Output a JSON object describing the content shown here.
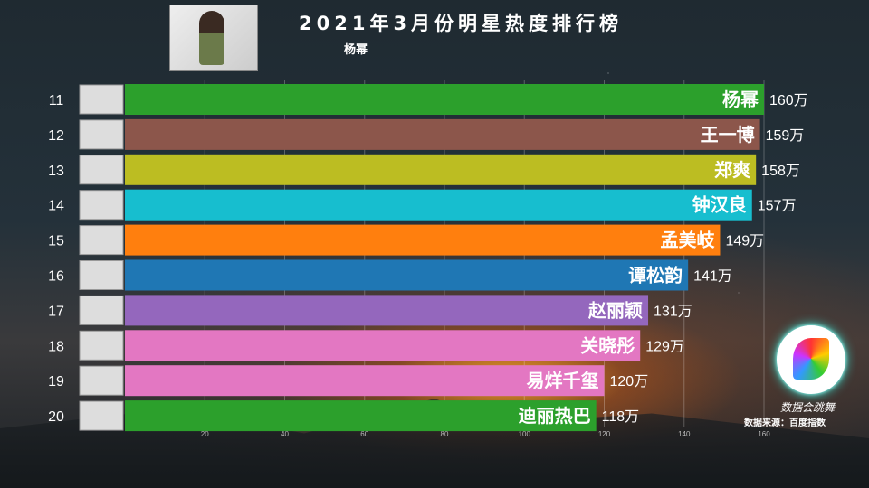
{
  "chart_data": {
    "type": "bar",
    "orientation": "horizontal",
    "title": "2021年3月份明星热度排行榜",
    "subtitle": "杨幂",
    "ranks": [
      11,
      12,
      13,
      14,
      15,
      16,
      17,
      18,
      19,
      20
    ],
    "categories": [
      "杨幂",
      "王一博",
      "郑爽",
      "钟汉良",
      "孟美岐",
      "谭松韵",
      "赵丽颖",
      "关晓彤",
      "易烊千玺",
      "迪丽热巴"
    ],
    "values": [
      160,
      159,
      158,
      157,
      149,
      141,
      131,
      129,
      120,
      118
    ],
    "value_labels": [
      "160万",
      "159万",
      "158万",
      "157万",
      "149万",
      "141万",
      "131万",
      "129万",
      "120万",
      "118万"
    ],
    "colors": [
      "#2ca02c",
      "#8c564b",
      "#bcbd22",
      "#17becf",
      "#ff7f0e",
      "#1f77b4",
      "#9467bd",
      "#e377c2",
      "#e377c2",
      "#2ca02c"
    ],
    "unit": "万",
    "xticks": [
      20,
      40,
      60,
      80,
      100,
      120,
      140,
      160
    ],
    "xlim": [
      0,
      165
    ],
    "grid": true
  },
  "brand": "数据会跳舞",
  "source": "数据来源：百度指数"
}
